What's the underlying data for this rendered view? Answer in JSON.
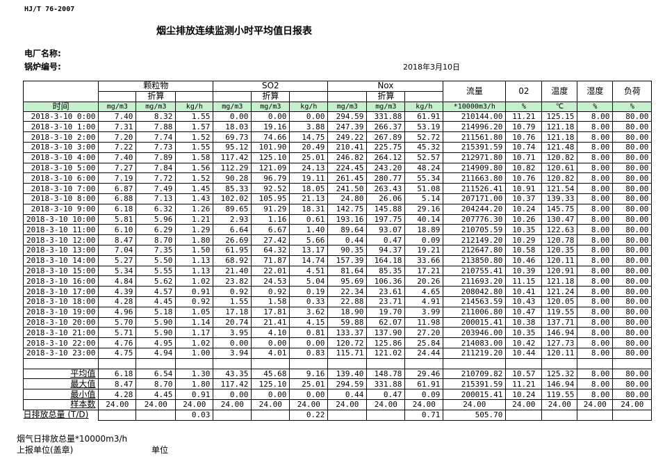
{
  "header": {
    "standard": "HJ/T  76-2007",
    "title": "烟尘排放连续监测小时平均值日报表",
    "plant_label": "电厂名称:",
    "boiler_label": "锅炉编号:",
    "date": "2018年3月10日"
  },
  "columns": {
    "groups": [
      "颗粒物",
      "SO2",
      "Nox"
    ],
    "converted": "折算",
    "flow": "流量",
    "o2": "02",
    "temp": "温度",
    "humidity": "湿度",
    "load": "负荷",
    "time": "时间",
    "units": [
      "mg/m3",
      "mg/m3",
      "kg/h",
      "mg/m3",
      "mg/m3",
      "kg/h",
      "mg/m3",
      "mg/m3",
      "kg/h",
      "*10000m3/h",
      "%",
      "℃",
      "%",
      "%"
    ]
  },
  "rows": [
    [
      "2018-3-10 0:00",
      "7.40",
      "8.32",
      "1.55",
      "0.00",
      "0.00",
      "0.00",
      "294.59",
      "331.88",
      "61.91",
      "210144.00",
      "11.21",
      "125.15",
      "8.00",
      "80.00"
    ],
    [
      "2018-3-10 1:00",
      "7.31",
      "7.88",
      "1.57",
      "18.03",
      "19.16",
      "3.88",
      "247.39",
      "266.37",
      "53.19",
      "214996.20",
      "10.79",
      "121.18",
      "8.00",
      "80.00"
    ],
    [
      "2018-3-10 2:00",
      "7.20",
      "7.74",
      "1.52",
      "69.73",
      "74.66",
      "14.75",
      "249.22",
      "267.89",
      "52.72",
      "211561.80",
      "10.76",
      "121.18",
      "8.00",
      "80.00"
    ],
    [
      "2018-3-10 3:00",
      "7.22",
      "7.73",
      "1.55",
      "95.12",
      "101.90",
      "20.49",
      "210.41",
      "225.75",
      "45.32",
      "215391.59",
      "10.74",
      "121.48",
      "8.00",
      "80.00"
    ],
    [
      "2018-3-10 4:00",
      "7.40",
      "7.89",
      "1.58",
      "117.42",
      "125.10",
      "25.01",
      "246.82",
      "264.12",
      "52.57",
      "212971.80",
      "10.71",
      "120.82",
      "8.00",
      "80.00"
    ],
    [
      "2018-3-10 5:00",
      "7.27",
      "7.84",
      "1.56",
      "112.29",
      "121.09",
      "24.13",
      "224.45",
      "243.20",
      "48.24",
      "214909.80",
      "10.82",
      "120.61",
      "8.00",
      "80.00"
    ],
    [
      "2018-3-10 6:00",
      "7.19",
      "7.72",
      "1.52",
      "90.28",
      "96.79",
      "19.11",
      "261.45",
      "280.77",
      "55.34",
      "211663.80",
      "10.76",
      "120.82",
      "8.00",
      "80.00"
    ],
    [
      "2018-3-10 7:00",
      "6.87",
      "7.49",
      "1.45",
      "85.33",
      "92.52",
      "18.05",
      "241.50",
      "263.43",
      "51.08",
      "211526.41",
      "10.91",
      "121.54",
      "8.00",
      "80.00"
    ],
    [
      "2018-3-10 8:00",
      "6.88",
      "7.13",
      "1.43",
      "102.02",
      "105.95",
      "21.13",
      "24.80",
      "26.06",
      "5.14",
      "207171.00",
      "10.37",
      "139.33",
      "8.00",
      "80.00"
    ],
    [
      "2018-3-10 9:00",
      "6.18",
      "6.32",
      "1.26",
      "89.65",
      "91.29",
      "18.31",
      "142.75",
      "145.88",
      "29.16",
      "204244.20",
      "10.24",
      "145.75",
      "8.00",
      "80.00"
    ],
    [
      "2018-3-10 10:00",
      "5.81",
      "5.96",
      "1.21",
      "2.93",
      "1.16",
      "0.61",
      "193.16",
      "197.75",
      "40.14",
      "207776.30",
      "10.26",
      "130.47",
      "8.00",
      "80.00"
    ],
    [
      "2018-3-10 11:00",
      "6.10",
      "6.29",
      "1.29",
      "6.64",
      "6.67",
      "1.40",
      "89.64",
      "93.07",
      "18.89",
      "210705.59",
      "10.35",
      "122.63",
      "8.00",
      "80.00"
    ],
    [
      "2018-3-10 12:00",
      "8.47",
      "8.70",
      "1.80",
      "26.69",
      "27.42",
      "5.66",
      "0.44",
      "0.47",
      "0.09",
      "212149.20",
      "10.29",
      "120.78",
      "8.00",
      "80.00"
    ],
    [
      "2018-3-10 13:00",
      "7.04",
      "7.35",
      "1.50",
      "61.95",
      "64.32",
      "13.17",
      "90.35",
      "94.37",
      "19.21",
      "212647.80",
      "10.58",
      "120.35",
      "8.00",
      "80.00"
    ],
    [
      "2018-3-10 14:00",
      "5.27",
      "5.50",
      "1.13",
      "68.92",
      "71.87",
      "14.74",
      "157.39",
      "164.18",
      "33.66",
      "213850.80",
      "10.46",
      "120.11",
      "8.00",
      "80.00"
    ],
    [
      "2018-3-10 15:00",
      "5.34",
      "5.55",
      "1.13",
      "21.40",
      "22.01",
      "4.51",
      "81.64",
      "85.35",
      "17.21",
      "210755.41",
      "10.39",
      "120.91",
      "8.00",
      "80.00"
    ],
    [
      "2018-3-10 16:00",
      "4.84",
      "5.62",
      "1.02",
      "23.82",
      "24.53",
      "5.04",
      "95.69",
      "106.36",
      "20.26",
      "211693.20",
      "11.15",
      "121.18",
      "8.00",
      "80.00"
    ],
    [
      "2018-3-10 17:00",
      "4.39",
      "4.57",
      "0.91",
      "0.92",
      "0.92",
      "0.19",
      "22.34",
      "23.61",
      "4.65",
      "208042.80",
      "10.41",
      "121.24",
      "8.00",
      "80.00"
    ],
    [
      "2018-3-10 18:00",
      "4.28",
      "4.45",
      "0.92",
      "1.55",
      "1.58",
      "0.33",
      "22.88",
      "23.71",
      "4.91",
      "214563.59",
      "10.43",
      "120.05",
      "8.00",
      "80.00"
    ],
    [
      "2018-3-10 19:00",
      "4.96",
      "5.18",
      "1.05",
      "17.18",
      "17.81",
      "3.62",
      "18.90",
      "19.70",
      "3.99",
      "211006.80",
      "10.47",
      "119.55",
      "8.00",
      "80.00"
    ],
    [
      "2018-3-10 20:00",
      "5.70",
      "5.90",
      "1.14",
      "20.74",
      "21.41",
      "4.15",
      "59.88",
      "62.07",
      "11.98",
      "200015.41",
      "10.38",
      "137.71",
      "8.00",
      "80.00"
    ],
    [
      "2018-3-10 21:00",
      "5.71",
      "5.90",
      "1.17",
      "3.95",
      "4.10",
      "0.81",
      "133.37",
      "137.90",
      "27.20",
      "203946.00",
      "10.35",
      "146.94",
      "8.00",
      "80.00"
    ],
    [
      "2018-3-10 22:00",
      "4.76",
      "4.95",
      "1.02",
      "0.00",
      "0.00",
      "0.00",
      "120.72",
      "125.86",
      "25.84",
      "214083.00",
      "10.42",
      "127.73",
      "8.00",
      "80.00"
    ],
    [
      "2018-3-10 23:00",
      "4.75",
      "4.94",
      "1.00",
      "3.94",
      "4.01",
      "0.83",
      "115.71",
      "121.02",
      "24.44",
      "211219.20",
      "10.44",
      "120.11",
      "8.00",
      "80.00"
    ]
  ],
  "summary": [
    [
      "平均值",
      "6.18",
      "6.54",
      "1.30",
      "43.35",
      "45.68",
      "9.16",
      "139.40",
      "148.78",
      "29.46",
      "210709.82",
      "10.57",
      "125.32",
      "8.00",
      "80.00"
    ],
    [
      "最大值",
      "8.47",
      "8.70",
      "1.80",
      "117.42",
      "125.10",
      "25.01",
      "294.59",
      "331.88",
      "61.91",
      "215391.59",
      "11.21",
      "146.94",
      "8.00",
      "80.00"
    ],
    [
      "最小值",
      "4.28",
      "4.45",
      "0.91",
      "0.00",
      "0.00",
      "0.00",
      "0.44",
      "0.47",
      "0.09",
      "200015.41",
      "10.24",
      "119.55",
      "8.00",
      "80.00"
    ],
    [
      "样本数",
      "24.00",
      "24.00",
      "24.00",
      "24.00",
      "24.00",
      "24.00",
      "24.00",
      "24.00",
      "24.00",
      "24.00",
      "24.00",
      "24.00",
      "24.00",
      "24.00"
    ],
    [
      "日排放总量 (T/D)",
      "",
      "",
      "0.03",
      "",
      "",
      "0.22",
      "",
      "",
      "0.71",
      "505.70",
      "",
      "",
      "",
      ""
    ]
  ],
  "footer": {
    "flue_gas_total": "烟气日排放总量*10000m3/h",
    "reporter": "上报单位(盖章)",
    "unit": "单位"
  },
  "colors": {
    "unit_row_bg": "#c6efce",
    "border": "#000000"
  }
}
